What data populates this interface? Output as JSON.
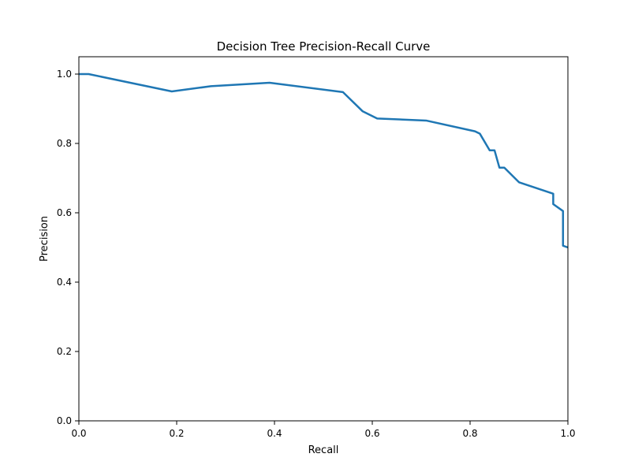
{
  "chart_data": {
    "type": "line",
    "title": "Decision Tree Precision-Recall Curve",
    "xlabel": "Recall",
    "ylabel": "Precision",
    "xlim": [
      0.0,
      1.0
    ],
    "ylim": [
      0.0,
      1.05
    ],
    "xticks": [
      "0.0",
      "0.2",
      "0.4",
      "0.6",
      "0.8",
      "1.0"
    ],
    "yticks": [
      "0.0",
      "0.2",
      "0.4",
      "0.6",
      "0.8",
      "1.0"
    ],
    "grid": false,
    "legend": "none",
    "series": [
      {
        "color": "#1f77b4",
        "x": [
          0.0,
          0.02,
          0.19,
          0.27,
          0.39,
          0.54,
          0.58,
          0.61,
          0.71,
          0.81,
          0.82,
          0.84,
          0.85,
          0.86,
          0.87,
          0.9,
          0.97,
          0.97,
          0.99,
          0.99,
          1.0
        ],
        "y": [
          1.0,
          1.0,
          0.95,
          0.965,
          0.975,
          0.948,
          0.893,
          0.872,
          0.866,
          0.835,
          0.828,
          0.78,
          0.78,
          0.73,
          0.73,
          0.688,
          0.655,
          0.625,
          0.605,
          0.505,
          0.5
        ]
      }
    ]
  }
}
